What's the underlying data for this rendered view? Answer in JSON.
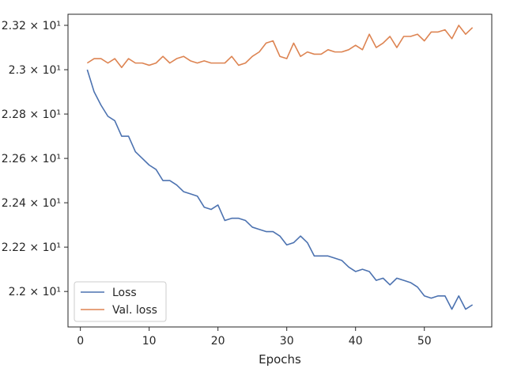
{
  "chart_data": {
    "type": "line",
    "title": "",
    "xlabel": "Epochs",
    "ylabel": "",
    "xlim": [
      -1.8,
      59.8
    ],
    "ylim": [
      21.84,
      23.25
    ],
    "xticks": [
      0,
      10,
      20,
      30,
      40,
      50
    ],
    "yticks": [
      {
        "value": 22.0,
        "label": "2.2 × 10¹"
      },
      {
        "value": 22.2,
        "label": "2.22 × 10¹"
      },
      {
        "value": 22.4,
        "label": "2.24 × 10¹"
      },
      {
        "value": 22.6,
        "label": "2.26 × 10¹"
      },
      {
        "value": 22.8,
        "label": "2.28 × 10¹"
      },
      {
        "value": 23.0,
        "label": "2.3 × 10¹"
      },
      {
        "value": 23.2,
        "label": "2.32 × 10¹"
      }
    ],
    "grid": false,
    "legend_position": "lower-left",
    "x": [
      1,
      2,
      3,
      4,
      5,
      6,
      7,
      8,
      9,
      10,
      11,
      12,
      13,
      14,
      15,
      16,
      17,
      18,
      19,
      20,
      21,
      22,
      23,
      24,
      25,
      26,
      27,
      28,
      29,
      30,
      31,
      32,
      33,
      34,
      35,
      36,
      37,
      38,
      39,
      40,
      41,
      42,
      43,
      44,
      45,
      46,
      47,
      48,
      49,
      50,
      51,
      52,
      53,
      54,
      55,
      56,
      57
    ],
    "series": [
      {
        "name": "Loss",
        "color": "#4c72b0",
        "values": [
          23.0,
          22.9,
          22.84,
          22.79,
          22.77,
          22.7,
          22.7,
          22.63,
          22.6,
          22.57,
          22.55,
          22.5,
          22.5,
          22.48,
          22.45,
          22.44,
          22.43,
          22.38,
          22.37,
          22.39,
          22.32,
          22.33,
          22.33,
          22.32,
          22.29,
          22.28,
          22.27,
          22.27,
          22.25,
          22.21,
          22.22,
          22.25,
          22.22,
          22.16,
          22.16,
          22.16,
          22.15,
          22.14,
          22.11,
          22.09,
          22.1,
          22.09,
          22.05,
          22.06,
          22.03,
          22.06,
          22.05,
          22.04,
          22.02,
          21.98,
          21.97,
          21.98,
          21.98,
          21.92,
          21.98,
          21.92,
          21.94
        ]
      },
      {
        "name": "Val. loss",
        "color": "#dd8452",
        "values": [
          23.03,
          23.05,
          23.05,
          23.03,
          23.05,
          23.01,
          23.05,
          23.03,
          23.03,
          23.02,
          23.03,
          23.06,
          23.03,
          23.05,
          23.06,
          23.04,
          23.03,
          23.04,
          23.03,
          23.03,
          23.03,
          23.06,
          23.02,
          23.03,
          23.06,
          23.08,
          23.12,
          23.13,
          23.06,
          23.05,
          23.12,
          23.06,
          23.08,
          23.07,
          23.07,
          23.09,
          23.08,
          23.08,
          23.09,
          23.11,
          23.09,
          23.16,
          23.1,
          23.12,
          23.15,
          23.1,
          23.15,
          23.15,
          23.16,
          23.13,
          23.17,
          23.17,
          23.18,
          23.14,
          23.2,
          23.16,
          23.19
        ]
      }
    ]
  }
}
